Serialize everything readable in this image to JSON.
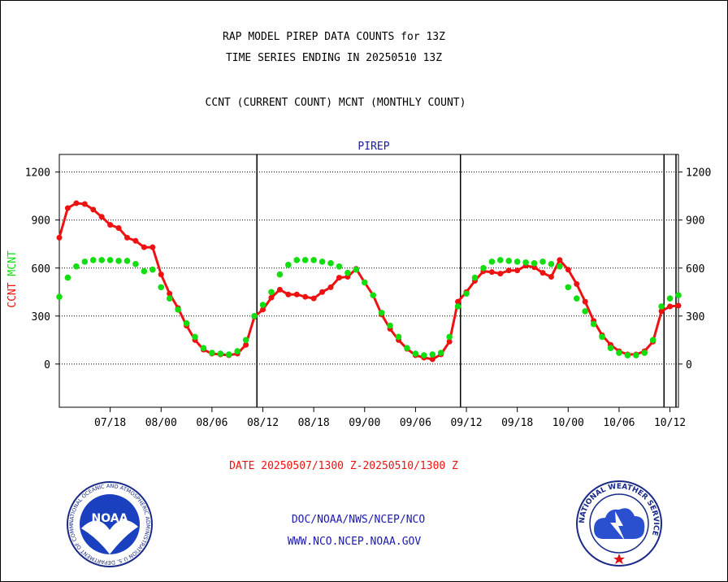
{
  "header": {
    "title": "RAP MODEL PIREP DATA COUNTS for 13Z",
    "subtitle": "TIME SERIES ENDING IN 20250510 13Z",
    "description": "CCNT (CURRENT COUNT) MCNT (MONTHLY COUNT)"
  },
  "footer": {
    "date_range": "DATE 20250507/1300 Z-20250510/1300 Z",
    "org": "DOC/NOAA/NWS/NCEP/NCO",
    "url": "WWW.NCO.NCEP.NOAA.GOV",
    "noaa_logo_text": "NOAA",
    "noaa_seal_text": "NATIONAL OCEANIC AND ATMOSPHERIC ADMINISTRATION U.S. DEPARTMENT OF COMMERCE",
    "nws_logo_text": "NATIONAL WEATHER SERVICE"
  },
  "colors": {
    "ccnt": "#ee1111",
    "mcnt": "#11dd11",
    "title": "#1a1aaa",
    "axis": "#000000"
  },
  "chart_data": {
    "type": "line",
    "title": "PIREP",
    "ylabel_left": {
      "ccnt": "CCNT",
      "mcnt": "MCNT"
    },
    "xlim": [
      0,
      73
    ],
    "ylim": [
      -270,
      1310
    ],
    "yticks": [
      0,
      300,
      600,
      900,
      1200
    ],
    "ytick_labels": [
      "0",
      "300",
      "600",
      "900",
      "1200"
    ],
    "gridlines": [
      300,
      600,
      900,
      1200
    ],
    "xticks": [
      6,
      12,
      18,
      24,
      30,
      36,
      42,
      48,
      54,
      60,
      66,
      72
    ],
    "xtick_labels": [
      "07/18",
      "08/00",
      "08/06",
      "08/12",
      "08/18",
      "09/00",
      "09/06",
      "09/12",
      "09/18",
      "10/00",
      "10/06",
      "10/12"
    ],
    "day_boundaries": [
      23.3,
      47.3,
      71.3
    ],
    "series": [
      {
        "name": "CCNT",
        "key": "ccnt",
        "x": [
          0,
          1,
          2,
          3,
          4,
          5,
          6,
          7,
          8,
          9,
          10,
          11,
          12,
          13,
          14,
          15,
          16,
          17,
          18,
          19,
          20,
          21,
          22,
          23,
          24,
          25,
          26,
          27,
          28,
          29,
          30,
          31,
          32,
          33,
          34,
          35,
          36,
          37,
          38,
          39,
          40,
          41,
          42,
          43,
          44,
          45,
          46,
          47,
          48,
          49,
          50,
          51,
          52,
          53,
          54,
          55,
          56,
          57,
          58,
          59,
          60,
          61,
          62,
          63,
          64,
          65,
          66,
          67,
          68,
          69,
          70,
          71,
          72,
          73
        ],
        "values": [
          790,
          975,
          1005,
          1000,
          965,
          920,
          870,
          850,
          790,
          770,
          730,
          730,
          560,
          440,
          350,
          240,
          150,
          90,
          65,
          60,
          55,
          65,
          120,
          295,
          340,
          415,
          465,
          435,
          435,
          420,
          410,
          450,
          480,
          540,
          545,
          595,
          510,
          430,
          310,
          220,
          150,
          95,
          55,
          40,
          30,
          60,
          140,
          390,
          450,
          520,
          580,
          575,
          565,
          585,
          585,
          615,
          605,
          570,
          545,
          650,
          590,
          500,
          390,
          270,
          180,
          120,
          80,
          60,
          60,
          80,
          140,
          330,
          360,
          365
        ]
      },
      {
        "name": "MCNT",
        "key": "mcnt",
        "x": [
          0,
          1,
          2,
          3,
          4,
          5,
          6,
          7,
          8,
          9,
          10,
          11,
          12,
          13,
          14,
          15,
          16,
          17,
          18,
          19,
          20,
          21,
          22,
          23,
          24,
          25,
          26,
          27,
          28,
          29,
          30,
          31,
          32,
          33,
          34,
          35,
          36,
          37,
          38,
          39,
          40,
          41,
          42,
          43,
          44,
          45,
          46,
          47,
          48,
          49,
          50,
          51,
          52,
          53,
          54,
          55,
          56,
          57,
          58,
          59,
          60,
          61,
          62,
          63,
          64,
          65,
          66,
          67,
          68,
          69,
          70,
          71,
          72,
          73
        ],
        "values": [
          420,
          540,
          610,
          640,
          650,
          650,
          650,
          645,
          645,
          625,
          580,
          590,
          480,
          410,
          340,
          255,
          170,
          100,
          70,
          65,
          60,
          80,
          150,
          300,
          370,
          450,
          560,
          620,
          650,
          650,
          650,
          640,
          630,
          610,
          570,
          590,
          510,
          430,
          320,
          240,
          170,
          100,
          65,
          55,
          60,
          70,
          170,
          360,
          440,
          540,
          600,
          640,
          650,
          645,
          640,
          635,
          630,
          640,
          625,
          610,
          480,
          410,
          330,
          250,
          170,
          100,
          70,
          55,
          55,
          70,
          150,
          360,
          410,
          430
        ]
      }
    ]
  }
}
